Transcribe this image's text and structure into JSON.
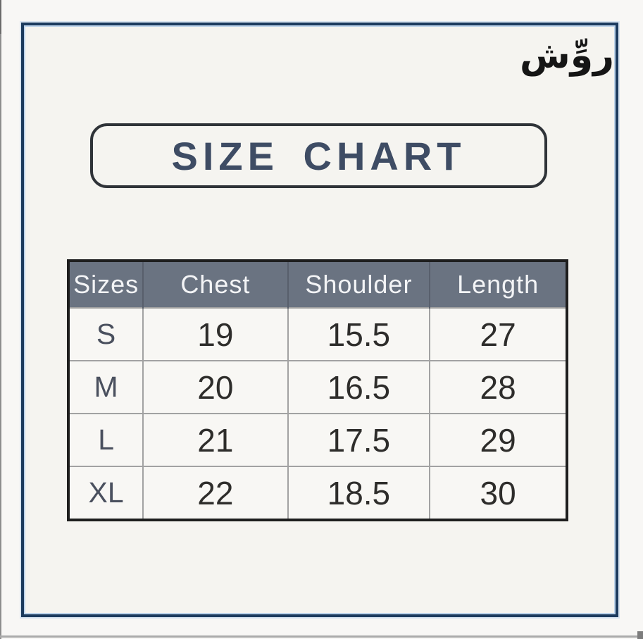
{
  "page": {
    "background_color": "#f8f7f5"
  },
  "frame": {
    "border_color": "#1c3b5e",
    "inner_accent_color": "#bdd4ec",
    "background_color": "#f5f4f0"
  },
  "brand": {
    "text": "روِّش",
    "color": "#151515"
  },
  "title": {
    "label": "SIZE CHART",
    "text_color": "#3e4c64",
    "box_border_color": "#2f3338"
  },
  "size_table": {
    "header_bg_color": "#6a7381",
    "header_text_color": "#f3f4f6",
    "body_bg_color": "#f8f7f4",
    "value_text_color": "#2e2d2b",
    "size_label_color": "#4a505e",
    "grid_line_color": "#a2a2a2",
    "outer_border_color": "#1e1e1e",
    "columns": [
      "Sizes",
      "Chest",
      "Shoulder",
      "Length"
    ],
    "rows": [
      [
        "S",
        "19",
        "15.5",
        "27"
      ],
      [
        "M",
        "20",
        "16.5",
        "28"
      ],
      [
        "L",
        "21",
        "17.5",
        "29"
      ],
      [
        "XL",
        "22",
        "18.5",
        "30"
      ]
    ]
  }
}
